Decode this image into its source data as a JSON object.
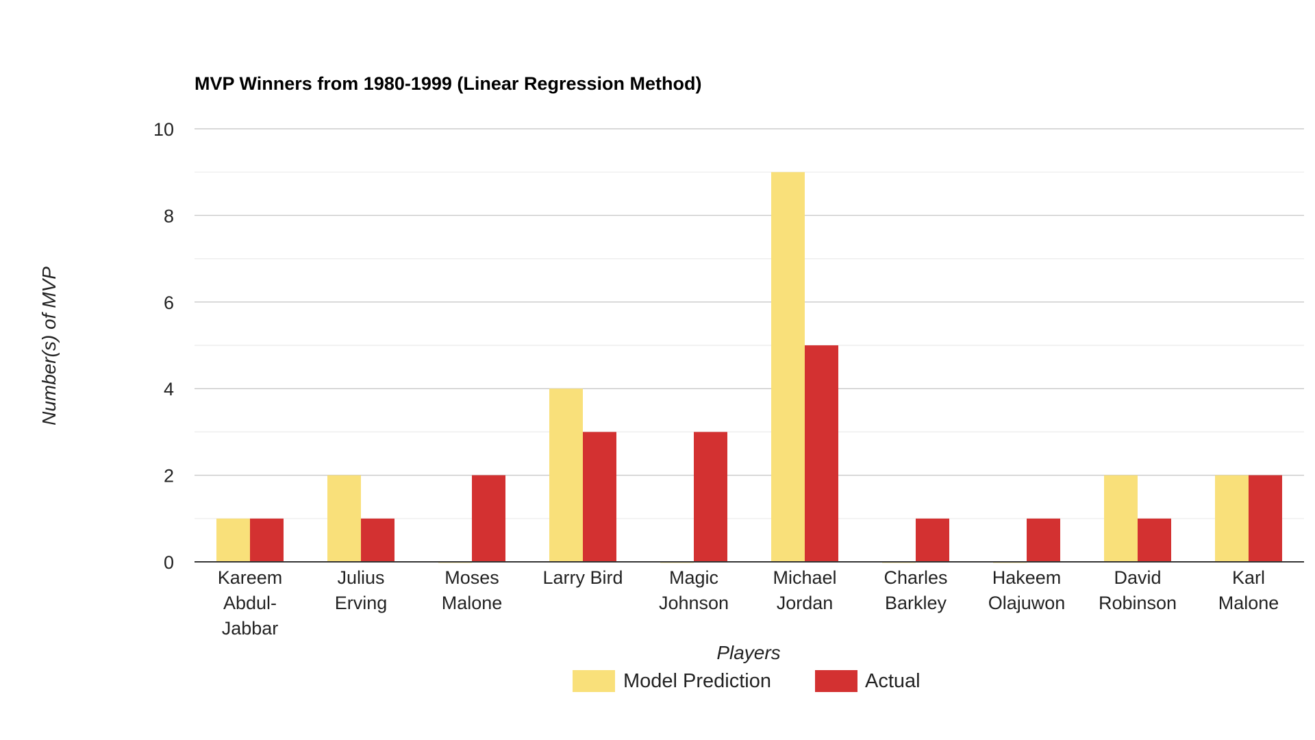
{
  "chart_data": {
    "type": "bar",
    "title": "MVP Winners from 1980-1999 (Linear Regression Method)",
    "xlabel": "Players",
    "ylabel": "Number(s) of MVP",
    "categories": [
      [
        "Kareem",
        "Abdul-",
        "Jabbar"
      ],
      [
        "Julius",
        "Erving"
      ],
      [
        "Moses",
        "Malone"
      ],
      [
        "Larry Bird"
      ],
      [
        "Magic",
        "Johnson"
      ],
      [
        "Michael",
        "Jordan"
      ],
      [
        "Charles",
        "Barkley"
      ],
      [
        "Hakeem",
        "Olajuwon"
      ],
      [
        "David",
        "Robinson"
      ],
      [
        "Karl",
        "Malone"
      ]
    ],
    "series": [
      {
        "name": "Model Prediction",
        "color": "#F9E07A",
        "values": [
          1,
          2,
          0,
          4,
          0,
          9,
          0,
          0,
          2,
          2
        ]
      },
      {
        "name": "Actual",
        "color": "#D33131",
        "values": [
          1,
          1,
          2,
          3,
          3,
          5,
          1,
          1,
          1,
          2
        ]
      }
    ],
    "ylim": [
      0,
      10
    ],
    "yticks": [
      "0",
      "2",
      "4",
      "6",
      "8",
      "10"
    ],
    "grid": true,
    "legend_position": "bottom"
  }
}
